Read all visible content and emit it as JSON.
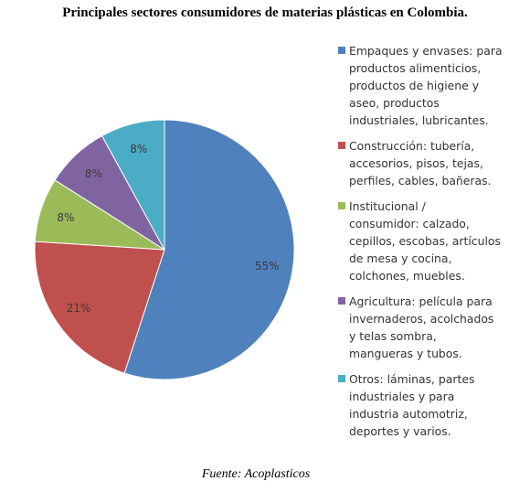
{
  "title": "Principales sectores consumidores de materias plásticas en Colombia.",
  "source": "Fuente: Acoplasticos",
  "chart_data": {
    "type": "pie",
    "values": [
      55,
      21,
      8,
      8,
      8
    ],
    "labels": [
      "55%",
      "21%",
      "8%",
      "8%",
      "8%"
    ],
    "colors": [
      "#4F81BD",
      "#C0504D",
      "#9BBB59",
      "#8064A2",
      "#4BACC6"
    ],
    "legend_position": "right",
    "legend": [
      "Empaques y envases: para\nproductos alimenticios,\nproductos de higiene y\naseo,     productos\nindustriales, lubricantes.",
      "Construcción: tubería,\naccesorios, pisos, tejas,\nperfiles, cables, bañeras.",
      "Institucional /\nconsumidor: calzado,\ncepillos, escobas, artículos\nde mesa y cocina,\ncolchones, muebles.",
      "Agricultura: película para\ninvernaderos, acolchados\ny telas sombra,\nmangueras y tubos.",
      "Otros: láminas, partes\nindustriales y para\nindustria automotriz,\ndeportes y varios."
    ]
  }
}
